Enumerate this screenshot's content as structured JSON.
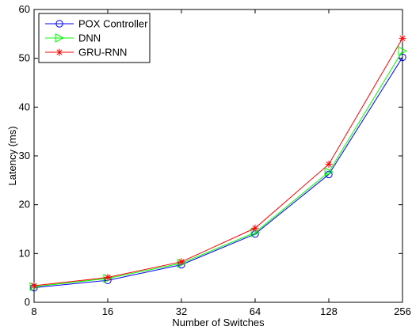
{
  "chart_data": {
    "type": "line",
    "xlabel": "Number of Switches",
    "ylabel": "Latency (ms)",
    "x_scale": "log2",
    "x": [
      8,
      16,
      32,
      64,
      128,
      256
    ],
    "x_tick_labels": [
      "8",
      "16",
      "32",
      "64",
      "128",
      "256"
    ],
    "xlim": [
      8,
      256
    ],
    "ylim": [
      0,
      60
    ],
    "y_ticks": [
      0,
      10,
      20,
      30,
      40,
      50,
      60
    ],
    "grid": false,
    "legend_position": "top-left",
    "series": [
      {
        "name": "POX Controller",
        "color": "#0000ff",
        "marker": "circle",
        "values": [
          3.0,
          4.5,
          7.7,
          14.0,
          26.2,
          50.2
        ]
      },
      {
        "name": "DNN",
        "color": "#00ff00",
        "marker": "triangle-right",
        "values": [
          3.2,
          4.9,
          8.0,
          14.3,
          26.7,
          51.5
        ]
      },
      {
        "name": "GRU-RNN",
        "color": "#ff0000",
        "marker": "asterisk",
        "values": [
          3.4,
          5.1,
          8.3,
          15.2,
          28.3,
          54.1
        ]
      }
    ]
  }
}
